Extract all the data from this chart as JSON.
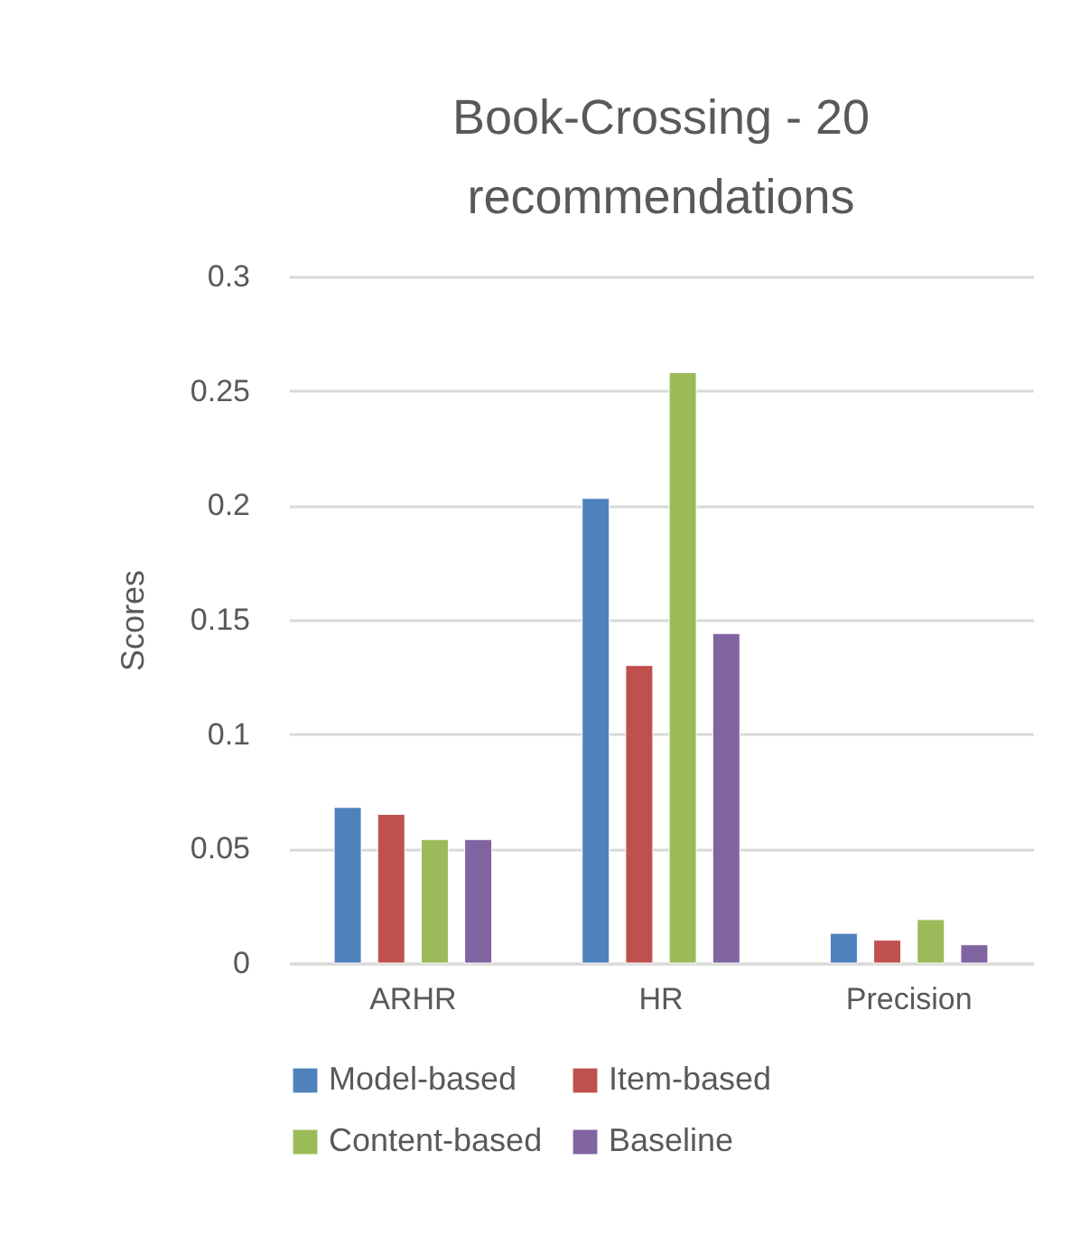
{
  "chart_data": {
    "type": "bar",
    "title": [
      "Book-Crossing - 20",
      "recommendations"
    ],
    "ylabel": "Scores",
    "categories": [
      "ARHR",
      "HR",
      "Precision"
    ],
    "series": [
      {
        "name": "Model-based",
        "color": "#4f81bd",
        "values": [
          0.068,
          0.203,
          0.013
        ]
      },
      {
        "name": "Item-based",
        "color": "#c0504d",
        "values": [
          0.065,
          0.13,
          0.01
        ]
      },
      {
        "name": "Content-based",
        "color": "#9bbb59",
        "values": [
          0.054,
          0.258,
          0.019
        ]
      },
      {
        "name": "Baseline",
        "color": "#8064a2",
        "values": [
          0.054,
          0.144,
          0.008
        ]
      }
    ],
    "ylim": [
      0,
      0.3
    ],
    "yticks": [
      0,
      0.05,
      0.1,
      0.15,
      0.2,
      0.25,
      0.3
    ],
    "grid": "y",
    "legend": "bottom"
  }
}
